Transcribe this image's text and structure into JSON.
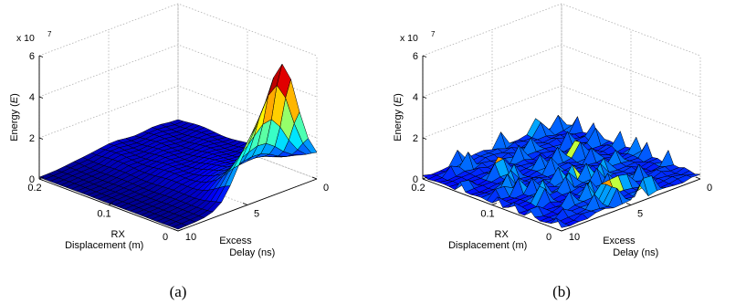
{
  "chart_data": [
    {
      "type": "surface",
      "caption": "(a)",
      "zlabel": "Energy (E)",
      "z_multiplier": "x 10",
      "z_multiplier_exp": "7",
      "z_ticks": [
        "0",
        "2",
        "4",
        "6"
      ],
      "zlim": [
        0,
        6
      ],
      "x_axis": {
        "label": [
          "RX",
          "Displacement (m)"
        ],
        "ticks": [
          "0.2",
          "0.1",
          "0"
        ],
        "range": [
          0,
          0.2
        ]
      },
      "y_axis": {
        "label": [
          "Excess",
          "Delay (ns)"
        ],
        "ticks": [
          "0",
          "5",
          "10"
        ],
        "range": [
          0,
          10
        ]
      },
      "colormap": "jet",
      "grid": true,
      "peak_value": 5.8,
      "peak_location": {
        "displacement_m": 0.0,
        "delay_ns": 2.5
      }
    },
    {
      "type": "surface",
      "caption": "(b)",
      "zlabel": "Energy (E)",
      "z_multiplier": "x 10",
      "z_multiplier_exp": "7",
      "z_ticks": [
        "0",
        "2",
        "4",
        "6"
      ],
      "zlim": [
        0,
        6
      ],
      "x_axis": {
        "label": [
          "RX",
          "Displacement (m)"
        ],
        "ticks": [
          "0.2",
          "0.1",
          "0"
        ],
        "range": [
          0,
          0.2
        ]
      },
      "y_axis": {
        "label": [
          "Excess",
          "Delay (ns)"
        ],
        "ticks": [
          "0",
          "5",
          "10"
        ],
        "range": [
          0,
          10
        ]
      },
      "colormap": "jet",
      "grid": true,
      "peak_value": 0.6
    }
  ]
}
